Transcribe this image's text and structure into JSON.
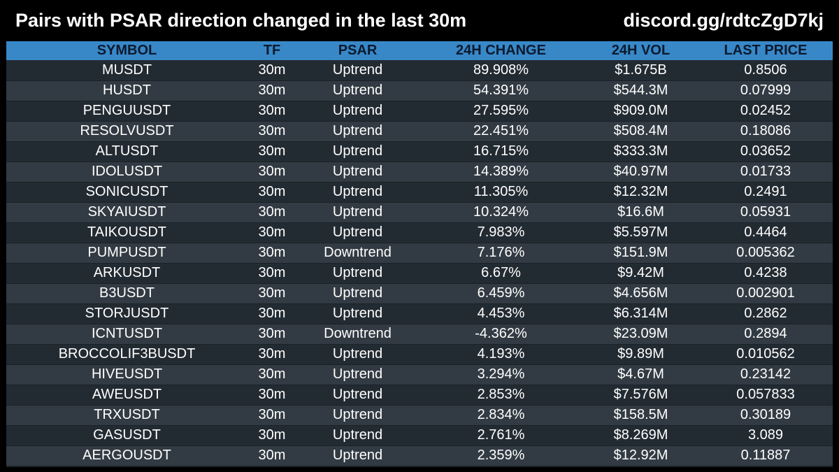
{
  "header": {
    "title": "Pairs with PSAR direction changed in the last 30m",
    "link": "discord.gg/rdtcZgD7kj"
  },
  "colors": {
    "background": "#000000",
    "header_row": "#3888c8",
    "header_text": "#0b1a2e",
    "row_odd": "#232b32",
    "row_even": "#323b43",
    "text": "#ffffff"
  },
  "table": {
    "columns": [
      "SYMBOL",
      "TF",
      "PSAR",
      "24H CHANGE",
      "24H VOL",
      "LAST PRICE"
    ],
    "rows": [
      [
        "MUSDT",
        "30m",
        "Uptrend",
        "89.908%",
        "$1.675B",
        "0.8506"
      ],
      [
        "HUSDT",
        "30m",
        "Uptrend",
        "54.391%",
        "$544.3M",
        "0.07999"
      ],
      [
        "PENGUUSDT",
        "30m",
        "Uptrend",
        "27.595%",
        "$909.0M",
        "0.02452"
      ],
      [
        "RESOLVUSDT",
        "30m",
        "Uptrend",
        "22.451%",
        "$508.4M",
        "0.18086"
      ],
      [
        "ALTUSDT",
        "30m",
        "Uptrend",
        "16.715%",
        "$333.3M",
        "0.03652"
      ],
      [
        "IDOLUSDT",
        "30m",
        "Uptrend",
        "14.389%",
        "$40.97M",
        "0.01733"
      ],
      [
        "SONICUSDT",
        "30m",
        "Uptrend",
        "11.305%",
        "$12.32M",
        "0.2491"
      ],
      [
        "SKYAIUSDT",
        "30m",
        "Uptrend",
        "10.324%",
        "$16.6M",
        "0.05931"
      ],
      [
        "TAIKOUSDT",
        "30m",
        "Uptrend",
        "7.983%",
        "$5.597M",
        "0.4464"
      ],
      [
        "PUMPUSDT",
        "30m",
        "Downtrend",
        "7.176%",
        "$151.9M",
        "0.005362"
      ],
      [
        "ARKUSDT",
        "30m",
        "Uptrend",
        "6.67%",
        "$9.42M",
        "0.4238"
      ],
      [
        "B3USDT",
        "30m",
        "Uptrend",
        "6.459%",
        "$4.656M",
        "0.002901"
      ],
      [
        "STORJUSDT",
        "30m",
        "Uptrend",
        "4.453%",
        "$6.314M",
        "0.2862"
      ],
      [
        "ICNTUSDT",
        "30m",
        "Downtrend",
        "-4.362%",
        "$23.09M",
        "0.2894"
      ],
      [
        "BROCCOLIF3BUSDT",
        "30m",
        "Uptrend",
        "4.193%",
        "$9.89M",
        "0.010562"
      ],
      [
        "HIVEUSDT",
        "30m",
        "Uptrend",
        "3.294%",
        "$4.67M",
        "0.23142"
      ],
      [
        "AWEUSDT",
        "30m",
        "Uptrend",
        "2.853%",
        "$7.576M",
        "0.057833"
      ],
      [
        "TRXUSDT",
        "30m",
        "Uptrend",
        "2.834%",
        "$158.5M",
        "0.30189"
      ],
      [
        "GASUSDT",
        "30m",
        "Uptrend",
        "2.761%",
        "$8.269M",
        "3.089"
      ],
      [
        "AERGOUSDT",
        "30m",
        "Uptrend",
        "2.359%",
        "$12.92M",
        "0.11887"
      ]
    ]
  }
}
